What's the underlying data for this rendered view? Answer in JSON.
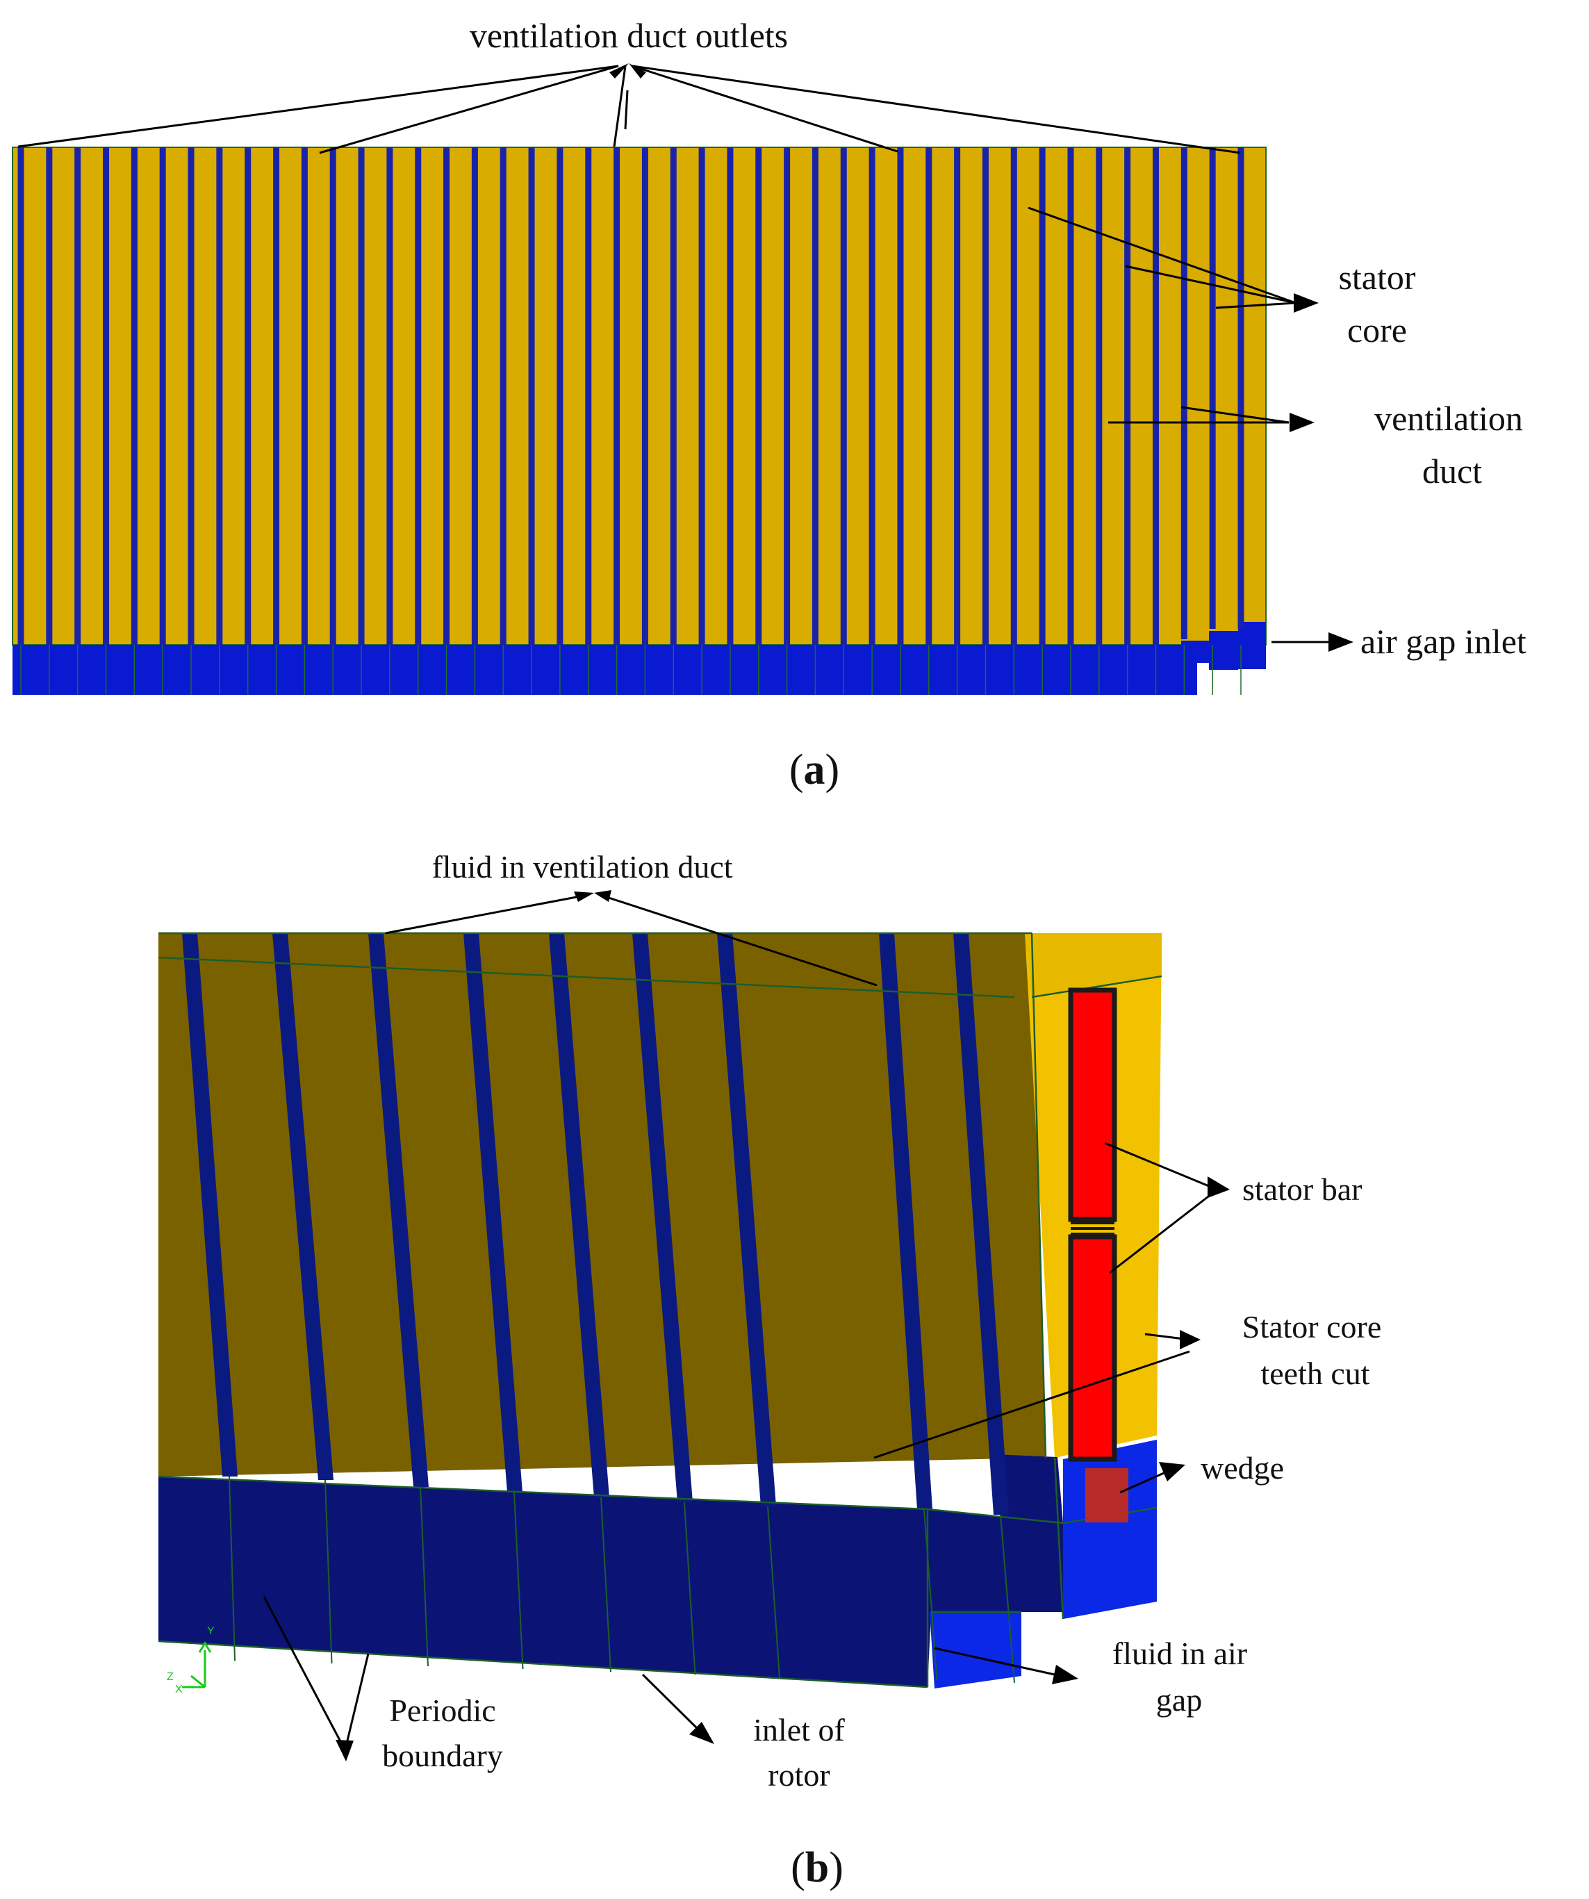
{
  "panel_a": {
    "caption_open": "(",
    "caption_letter": "a",
    "caption_close": ")",
    "labels": {
      "outlets": "ventilation duct outlets",
      "stator_core_1": "stator",
      "stator_core_2": "core",
      "vent_duct_1": "ventilation",
      "vent_duct_2": "duct",
      "air_gap_inlet": "air gap inlet"
    },
    "colors": {
      "stator_core": "#d8ac00",
      "duct": "#1a23a8",
      "air_gap": "#0a1ad0",
      "outline": "#1f6b2a"
    }
  },
  "panel_b": {
    "caption_open": "(",
    "caption_letter": "b",
    "caption_close": ")",
    "labels": {
      "fluid_duct": "fluid in ventilation duct",
      "stator_bar": "stator bar",
      "teeth_cut_1": "Stator core",
      "teeth_cut_2": "teeth cut",
      "wedge": "wedge",
      "fluid_gap_1": "fluid in air",
      "fluid_gap_2": "gap",
      "periodic_1": "Periodic",
      "periodic_2": "boundary",
      "inlet_rotor_1": "inlet of",
      "inlet_rotor_2": "rotor"
    },
    "axis_triad": {
      "y": "Y",
      "z": "Z",
      "x": "X"
    },
    "colors": {
      "core_dark": "#7a6100",
      "core_light": "#f2c200",
      "duct": "#0b1a80",
      "fluid_dark": "#0b1475",
      "fluid_bright": "#0b28e6",
      "stator_bar": "#ff0000",
      "wedge": "#b82b2b",
      "outline": "#1c5e2a",
      "triad": "#19c919"
    }
  }
}
